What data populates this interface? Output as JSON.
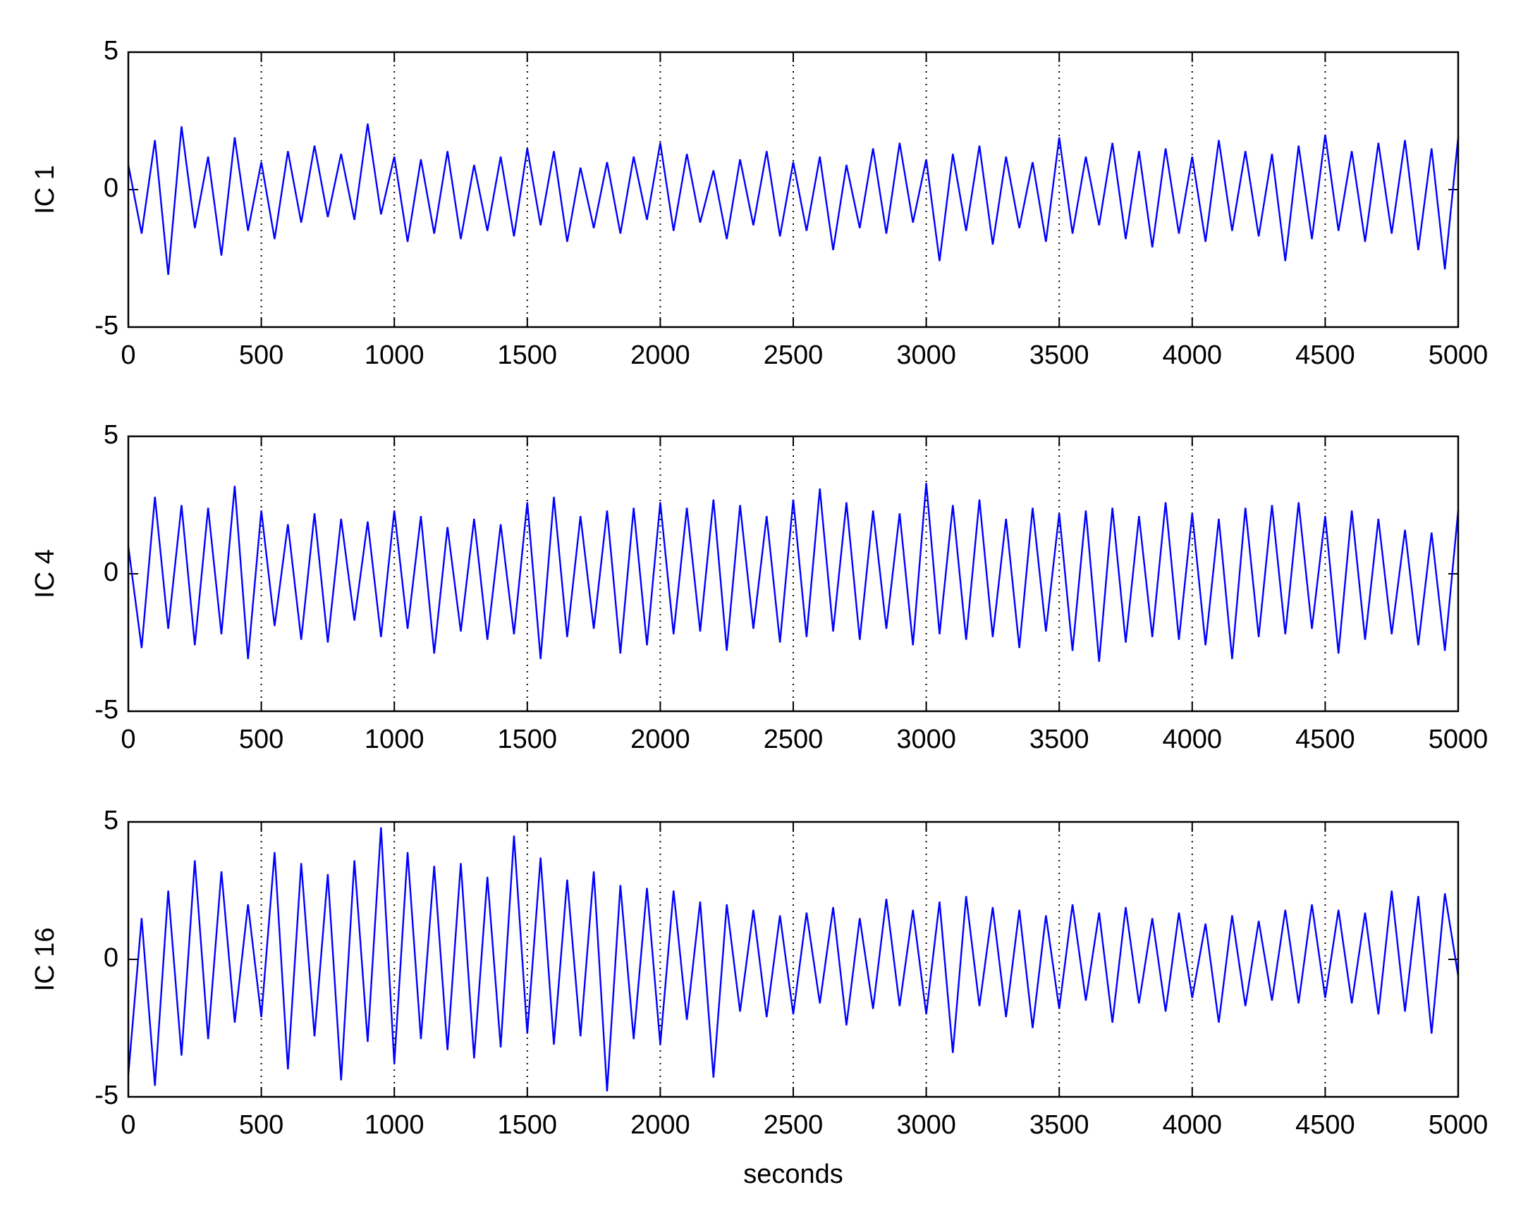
{
  "chart_data": [
    {
      "type": "line",
      "ylabel": "IC 1",
      "color": "#0000ff",
      "xlim": [
        0,
        5000
      ],
      "ylim": [
        -5,
        5
      ],
      "xticks": [
        0,
        500,
        1000,
        1500,
        2000,
        2500,
        3000,
        3500,
        4000,
        4500,
        5000
      ],
      "yticks": [
        -5,
        0,
        5
      ],
      "xgrid": true,
      "x": [
        0,
        50,
        100,
        150,
        200,
        250,
        300,
        350,
        400,
        450,
        500,
        550,
        600,
        650,
        700,
        750,
        800,
        850,
        900,
        950,
        1000,
        1050,
        1100,
        1150,
        1200,
        1250,
        1300,
        1350,
        1400,
        1450,
        1500,
        1550,
        1600,
        1650,
        1700,
        1750,
        1800,
        1850,
        1900,
        1950,
        2000,
        2050,
        2100,
        2150,
        2200,
        2250,
        2300,
        2350,
        2400,
        2450,
        2500,
        2550,
        2600,
        2650,
        2700,
        2750,
        2800,
        2850,
        2900,
        2950,
        3000,
        3050,
        3100,
        3150,
        3200,
        3250,
        3300,
        3350,
        3400,
        3450,
        3500,
        3550,
        3600,
        3650,
        3700,
        3750,
        3800,
        3850,
        3900,
        3950,
        4000,
        4050,
        4100,
        4150,
        4200,
        4250,
        4300,
        4350,
        4400,
        4450,
        4500,
        4550,
        4600,
        4650,
        4700,
        4750,
        4800,
        4850,
        4900,
        4950,
        5000
      ],
      "values": [
        0.9,
        -1.6,
        1.8,
        -3.1,
        2.3,
        -1.4,
        1.2,
        -2.4,
        1.9,
        -1.5,
        1.0,
        -1.8,
        1.4,
        -1.2,
        1.6,
        -1.0,
        1.3,
        -1.1,
        2.4,
        -0.9,
        1.2,
        -1.9,
        1.1,
        -1.6,
        1.4,
        -1.8,
        0.9,
        -1.5,
        1.2,
        -1.7,
        1.5,
        -1.3,
        1.4,
        -1.9,
        0.8,
        -1.4,
        1.0,
        -1.6,
        1.2,
        -1.1,
        1.7,
        -1.5,
        1.3,
        -1.2,
        0.7,
        -1.8,
        1.1,
        -1.3,
        1.4,
        -1.7,
        1.0,
        -1.5,
        1.2,
        -2.2,
        0.9,
        -1.4,
        1.5,
        -1.6,
        1.7,
        -1.2,
        1.1,
        -2.6,
        1.3,
        -1.5,
        1.6,
        -2.0,
        1.2,
        -1.4,
        1.0,
        -1.9,
        1.9,
        -1.6,
        1.2,
        -1.3,
        1.7,
        -1.8,
        1.4,
        -2.1,
        1.5,
        -1.6,
        1.2,
        -1.9,
        1.8,
        -1.5,
        1.4,
        -1.7,
        1.3,
        -2.6,
        1.6,
        -1.8,
        2.0,
        -1.5,
        1.4,
        -1.9,
        1.7,
        -1.6,
        1.8,
        -2.2,
        1.5,
        -2.9,
        1.9
      ]
    },
    {
      "type": "line",
      "ylabel": "IC 4",
      "color": "#0000ff",
      "xlim": [
        0,
        5000
      ],
      "ylim": [
        -5,
        5
      ],
      "xticks": [
        0,
        500,
        1000,
        1500,
        2000,
        2500,
        3000,
        3500,
        4000,
        4500,
        5000
      ],
      "yticks": [
        -5,
        0,
        5
      ],
      "xgrid": true,
      "x": [
        0,
        50,
        100,
        150,
        200,
        250,
        300,
        350,
        400,
        450,
        500,
        550,
        600,
        650,
        700,
        750,
        800,
        850,
        900,
        950,
        1000,
        1050,
        1100,
        1150,
        1200,
        1250,
        1300,
        1350,
        1400,
        1450,
        1500,
        1550,
        1600,
        1650,
        1700,
        1750,
        1800,
        1850,
        1900,
        1950,
        2000,
        2050,
        2100,
        2150,
        2200,
        2250,
        2300,
        2350,
        2400,
        2450,
        2500,
        2550,
        2600,
        2650,
        2700,
        2750,
        2800,
        2850,
        2900,
        2950,
        3000,
        3050,
        3100,
        3150,
        3200,
        3250,
        3300,
        3350,
        3400,
        3450,
        3500,
        3550,
        3600,
        3650,
        3700,
        3750,
        3800,
        3850,
        3900,
        3950,
        4000,
        4050,
        4100,
        4150,
        4200,
        4250,
        4300,
        4350,
        4400,
        4450,
        4500,
        4550,
        4600,
        4650,
        4700,
        4750,
        4800,
        4850,
        4900,
        4950,
        5000
      ],
      "values": [
        1.0,
        -2.7,
        2.8,
        -2.0,
        2.5,
        -2.6,
        2.4,
        -2.2,
        3.2,
        -3.1,
        2.3,
        -1.9,
        1.8,
        -2.4,
        2.2,
        -2.5,
        2.0,
        -1.7,
        1.9,
        -2.3,
        2.3,
        -2.0,
        2.1,
        -2.9,
        1.7,
        -2.1,
        2.0,
        -2.4,
        1.8,
        -2.2,
        2.6,
        -3.1,
        2.8,
        -2.3,
        2.1,
        -2.0,
        2.3,
        -2.9,
        2.4,
        -2.6,
        2.6,
        -2.2,
        2.4,
        -2.1,
        2.7,
        -2.8,
        2.5,
        -2.0,
        2.1,
        -2.5,
        2.7,
        -2.3,
        3.1,
        -2.1,
        2.6,
        -2.4,
        2.3,
        -2.0,
        2.2,
        -2.6,
        3.3,
        -2.2,
        2.5,
        -2.4,
        2.7,
        -2.3,
        2.0,
        -2.7,
        2.4,
        -2.1,
        2.2,
        -2.8,
        2.3,
        -3.2,
        2.4,
        -2.5,
        2.1,
        -2.3,
        2.6,
        -2.4,
        2.2,
        -2.6,
        2.0,
        -3.1,
        2.4,
        -2.3,
        2.5,
        -2.2,
        2.6,
        -2.0,
        2.1,
        -2.9,
        2.3,
        -2.4,
        2.0,
        -2.2,
        1.6,
        -2.6,
        1.5,
        -2.8,
        2.3
      ]
    },
    {
      "type": "line",
      "ylabel": "IC 16",
      "xlabel": "seconds",
      "color": "#0000ff",
      "xlim": [
        0,
        5000
      ],
      "ylim": [
        -5,
        5
      ],
      "xticks": [
        0,
        500,
        1000,
        1500,
        2000,
        2500,
        3000,
        3500,
        4000,
        4500,
        5000
      ],
      "yticks": [
        -5,
        0,
        5
      ],
      "xgrid": true,
      "x": [
        0,
        50,
        100,
        150,
        200,
        250,
        300,
        350,
        400,
        450,
        500,
        550,
        600,
        650,
        700,
        750,
        800,
        850,
        900,
        950,
        1000,
        1050,
        1100,
        1150,
        1200,
        1250,
        1300,
        1350,
        1400,
        1450,
        1500,
        1550,
        1600,
        1650,
        1700,
        1750,
        1800,
        1850,
        1900,
        1950,
        2000,
        2050,
        2100,
        2150,
        2200,
        2250,
        2300,
        2350,
        2400,
        2450,
        2500,
        2550,
        2600,
        2650,
        2700,
        2750,
        2800,
        2850,
        2900,
        2950,
        3000,
        3050,
        3100,
        3150,
        3200,
        3250,
        3300,
        3350,
        3400,
        3450,
        3500,
        3550,
        3600,
        3650,
        3700,
        3750,
        3800,
        3850,
        3900,
        3950,
        4000,
        4050,
        4100,
        4150,
        4200,
        4250,
        4300,
        4350,
        4400,
        4450,
        4500,
        4550,
        4600,
        4650,
        4700,
        4750,
        4800,
        4850,
        4900,
        4950,
        5000
      ],
      "values": [
        -4.2,
        1.5,
        -4.6,
        2.5,
        -3.5,
        3.6,
        -2.9,
        3.2,
        -2.3,
        2.0,
        -2.1,
        3.9,
        -4.0,
        3.5,
        -2.8,
        3.1,
        -4.4,
        3.6,
        -3.0,
        4.8,
        -3.8,
        3.9,
        -2.9,
        3.4,
        -3.3,
        3.5,
        -3.6,
        3.0,
        -3.2,
        4.5,
        -2.7,
        3.7,
        -3.1,
        2.9,
        -2.8,
        3.2,
        -4.8,
        2.7,
        -2.9,
        2.6,
        -3.1,
        2.5,
        -2.2,
        2.1,
        -4.3,
        2.0,
        -1.9,
        1.8,
        -2.1,
        1.6,
        -2.0,
        1.7,
        -1.6,
        1.9,
        -2.4,
        1.5,
        -1.8,
        2.2,
        -1.7,
        1.8,
        -2.0,
        2.1,
        -3.4,
        2.3,
        -1.7,
        1.9,
        -2.1,
        1.8,
        -2.5,
        1.6,
        -1.8,
        2.0,
        -1.5,
        1.7,
        -2.3,
        1.9,
        -1.6,
        1.5,
        -1.9,
        1.7,
        -1.4,
        1.3,
        -2.3,
        1.6,
        -1.7,
        1.4,
        -1.5,
        1.8,
        -1.6,
        2.0,
        -1.4,
        1.8,
        -1.6,
        1.7,
        -2.0,
        2.5,
        -1.9,
        2.3,
        -2.7,
        2.4,
        -0.6
      ]
    }
  ]
}
